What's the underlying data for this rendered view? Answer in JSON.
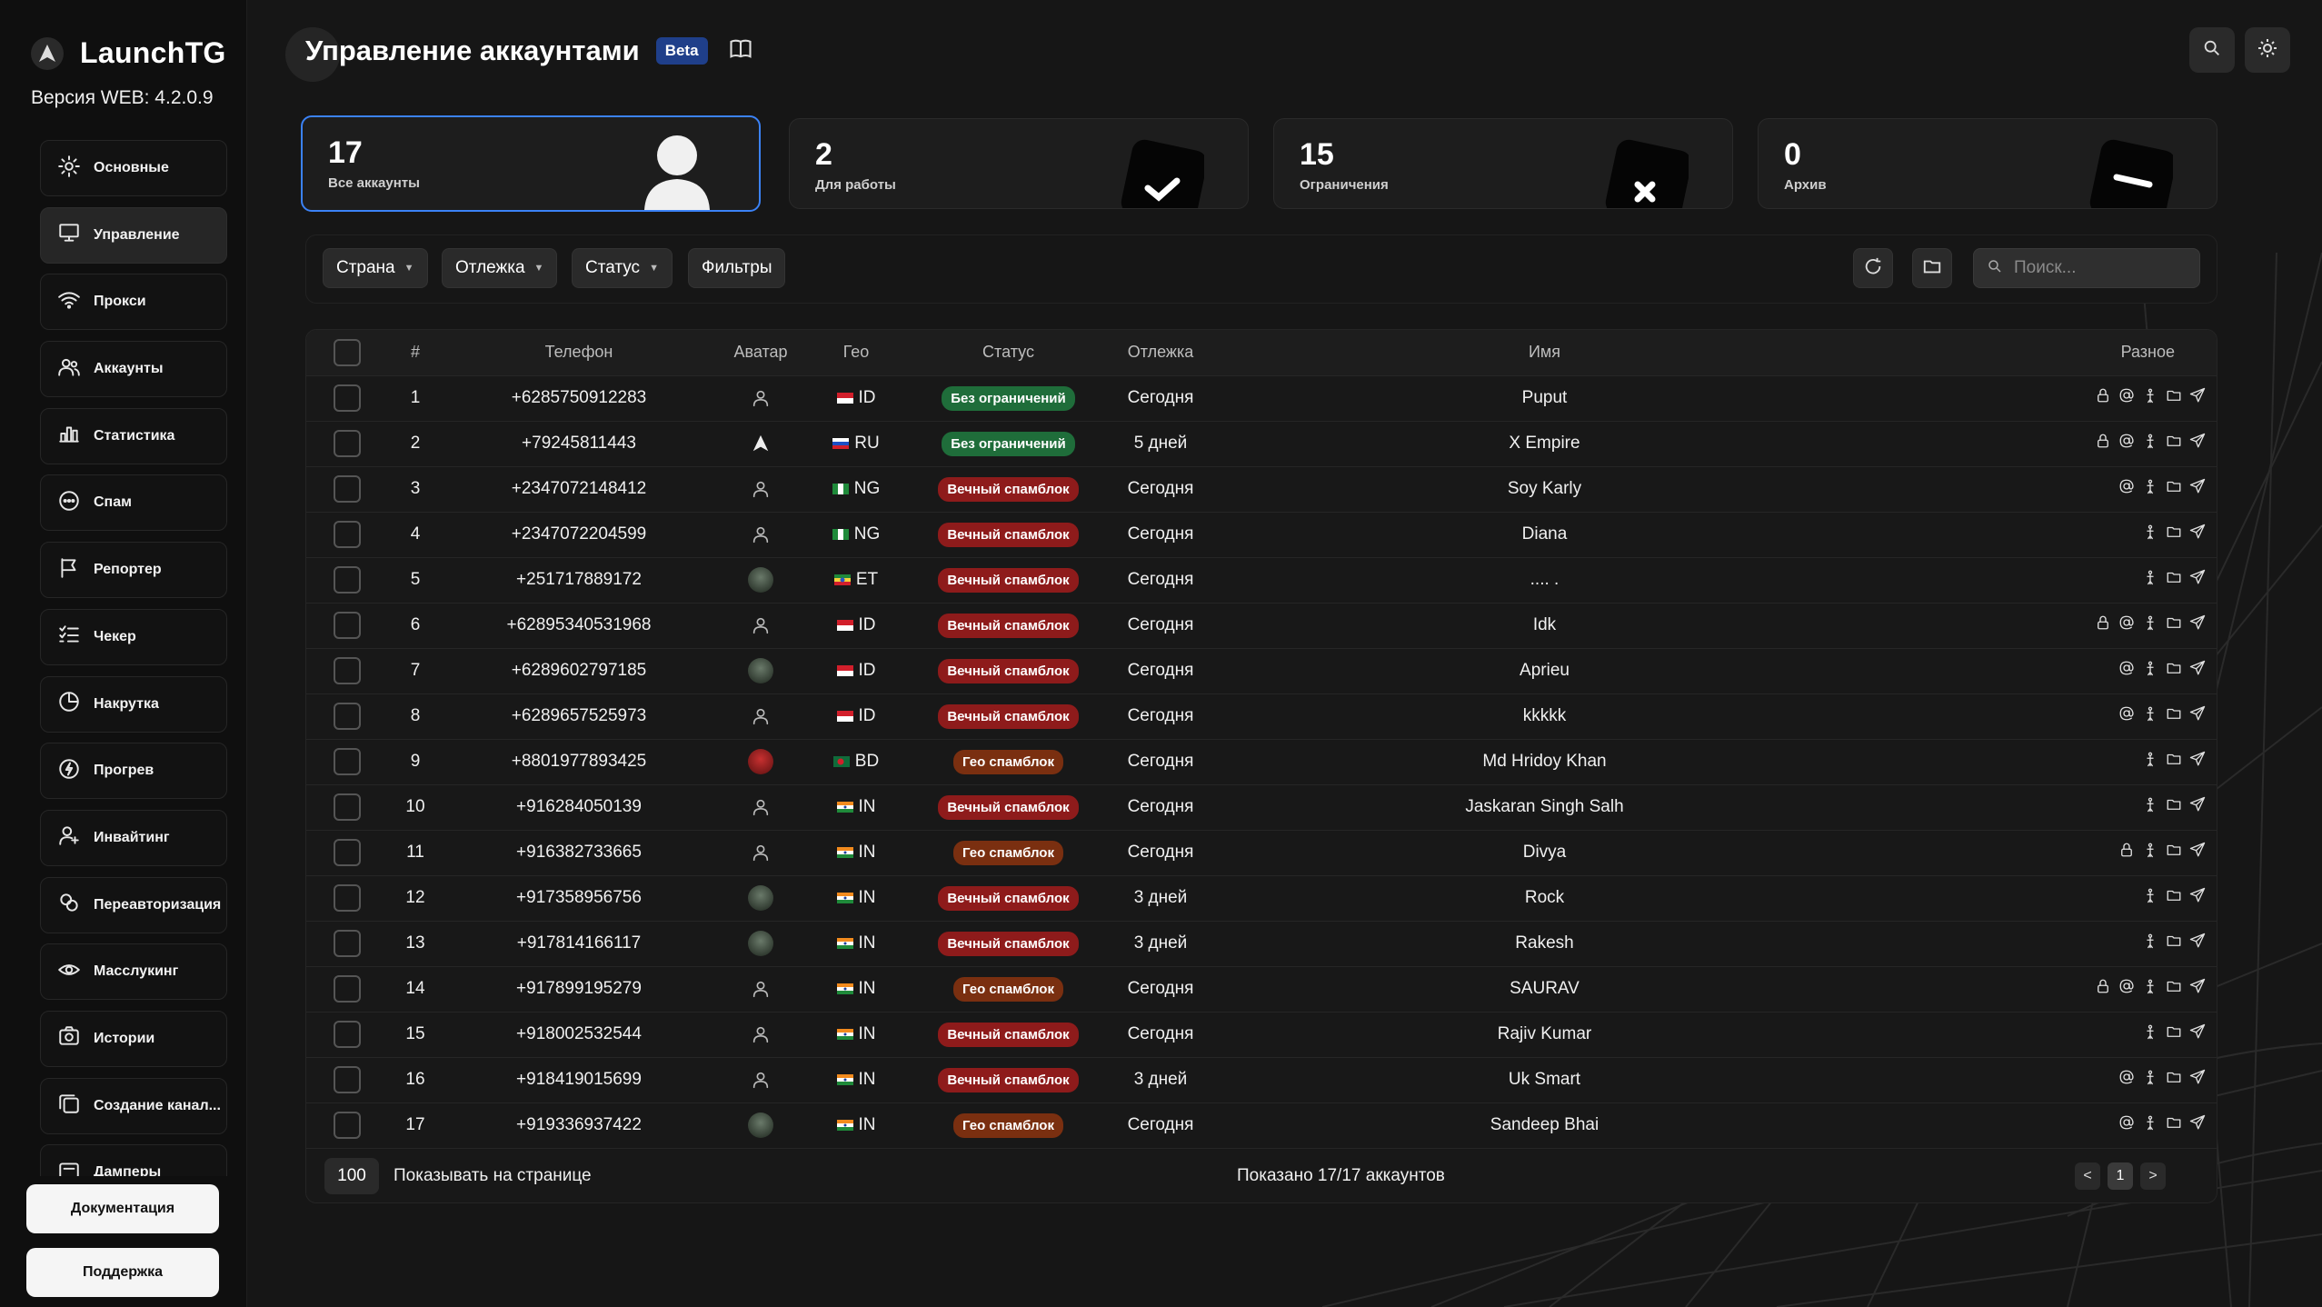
{
  "brand": {
    "name": "LaunchTG",
    "version": "Версия WEB: 4.2.0.9"
  },
  "nav": [
    {
      "label": "Основные",
      "icon": "gear-icon"
    },
    {
      "label": "Управление",
      "icon": "monitor-icon",
      "active": true
    },
    {
      "label": "Прокси",
      "icon": "wifi-icon"
    },
    {
      "label": "Аккаунты",
      "icon": "users-icon"
    },
    {
      "label": "Статистика",
      "icon": "bar-chart-icon"
    },
    {
      "label": "Спам",
      "icon": "chat-icon"
    },
    {
      "label": "Репортер",
      "icon": "flag-icon"
    },
    {
      "label": "Чекер",
      "icon": "checklist-icon"
    },
    {
      "label": "Накрутка",
      "icon": "pie-icon"
    },
    {
      "label": "Прогрев",
      "icon": "bolt-icon"
    },
    {
      "label": "Инвайтинг",
      "icon": "add-user-icon"
    },
    {
      "label": "Переавторизация",
      "icon": "cycle-icon"
    },
    {
      "label": "Масслукинг",
      "icon": "eye-icon"
    },
    {
      "label": "Истории",
      "icon": "camera-icon"
    },
    {
      "label": "Создание канал...",
      "icon": "copy-icon"
    },
    {
      "label": "Дамперы",
      "icon": "dump-icon"
    }
  ],
  "sidebar_buttons": {
    "docs": "Документация",
    "support": "Поддержка"
  },
  "header": {
    "title": "Управление аккаунтами",
    "badge": "Beta"
  },
  "stats": [
    {
      "value": "17",
      "label": "Все аккаунты",
      "icon": "user-icon"
    },
    {
      "value": "2",
      "label": "Для работы",
      "icon": "check-icon"
    },
    {
      "value": "15",
      "label": "Ограничения",
      "icon": "x-icon"
    },
    {
      "value": "0",
      "label": "Архив",
      "icon": "minus-icon"
    }
  ],
  "filters": {
    "country": "Страна",
    "spam_age": "Отлежка",
    "status": "Статус",
    "filters": "Фильтры",
    "search_placeholder": "Поиск..."
  },
  "table": {
    "headers": {
      "num": "#",
      "phone": "Телефон",
      "avatar": "Аватар",
      "geo": "Гео",
      "status": "Статус",
      "age": "Отлежка",
      "name": "Имя",
      "misc": "Разное"
    },
    "rows": [
      {
        "n": "1",
        "phone": "+6285750912283",
        "avatar": "none",
        "geo": "ID",
        "status": "Без ограничений",
        "type": "green",
        "age": "Сегодня",
        "name": "Puput",
        "icons": [
          "lock",
          "at",
          "key",
          "folder",
          "send"
        ]
      },
      {
        "n": "2",
        "phone": "+79245811443",
        "avatar": "logo",
        "geo": "RU",
        "status": "Без ограничений",
        "type": "green",
        "age": "5 дней",
        "name": "X Empire",
        "icons": [
          "lock",
          "at",
          "key",
          "folder",
          "send"
        ]
      },
      {
        "n": "3",
        "phone": "+2347072148412",
        "avatar": "none",
        "geo": "NG",
        "status": "Вечный спамблок",
        "type": "red",
        "age": "Сегодня",
        "name": "Soy Karly",
        "icons": [
          "at",
          "key",
          "folder",
          "send"
        ]
      },
      {
        "n": "4",
        "phone": "+2347072204599",
        "avatar": "none",
        "geo": "NG",
        "status": "Вечный спамблок",
        "type": "red",
        "age": "Сегодня",
        "name": "Diana",
        "icons": [
          "key",
          "folder",
          "send"
        ]
      },
      {
        "n": "5",
        "phone": "+251717889172",
        "avatar": "photo",
        "geo": "ET",
        "status": "Вечный спамблок",
        "type": "red",
        "age": "Сегодня",
        "name": ".... .",
        "icons": [
          "key",
          "folder",
          "send"
        ]
      },
      {
        "n": "6",
        "phone": "+62895340531968",
        "avatar": "none",
        "geo": "ID",
        "status": "Вечный спамблок",
        "type": "red",
        "age": "Сегодня",
        "name": "Idk",
        "icons": [
          "lock",
          "at",
          "key",
          "folder",
          "send"
        ]
      },
      {
        "n": "7",
        "phone": "+6289602797185",
        "avatar": "photo",
        "geo": "ID",
        "status": "Вечный спамблок",
        "type": "red",
        "age": "Сегодня",
        "name": "Aprieu",
        "icons": [
          "at",
          "key",
          "folder",
          "send"
        ]
      },
      {
        "n": "8",
        "phone": "+6289657525973",
        "avatar": "none",
        "geo": "ID",
        "status": "Вечный спамблок",
        "type": "red",
        "age": "Сегодня",
        "name": "kkkkk",
        "icons": [
          "at",
          "key",
          "folder",
          "send"
        ]
      },
      {
        "n": "9",
        "phone": "+8801977893425",
        "avatar": "photo-red",
        "geo": "BD",
        "status": "Гео спамблок",
        "type": "orange",
        "age": "Сегодня",
        "name": "Md Hridoy Khan",
        "icons": [
          "key",
          "folder",
          "send"
        ]
      },
      {
        "n": "10",
        "phone": "+916284050139",
        "avatar": "none",
        "geo": "IN",
        "status": "Вечный спамблок",
        "type": "red",
        "age": "Сегодня",
        "name": "Jaskaran Singh Salh",
        "icons": [
          "key",
          "folder",
          "send"
        ]
      },
      {
        "n": "11",
        "phone": "+916382733665",
        "avatar": "none",
        "geo": "IN",
        "status": "Гео спамблок",
        "type": "orange",
        "age": "Сегодня",
        "name": "Divya",
        "icons": [
          "lock",
          "key",
          "folder",
          "send"
        ]
      },
      {
        "n": "12",
        "phone": "+917358956756",
        "avatar": "photo",
        "geo": "IN",
        "status": "Вечный спамблок",
        "type": "red",
        "age": "3 дней",
        "name": "Rock",
        "icons": [
          "key",
          "folder",
          "send"
        ]
      },
      {
        "n": "13",
        "phone": "+917814166117",
        "avatar": "photo",
        "geo": "IN",
        "status": "Вечный спамблок",
        "type": "red",
        "age": "3 дней",
        "name": "Rakesh",
        "icons": [
          "key",
          "folder",
          "send"
        ]
      },
      {
        "n": "14",
        "phone": "+917899195279",
        "avatar": "none",
        "geo": "IN",
        "status": "Гео спамблок",
        "type": "orange",
        "age": "Сегодня",
        "name": "SAURAV",
        "icons": [
          "lock",
          "at",
          "key",
          "folder",
          "send"
        ]
      },
      {
        "n": "15",
        "phone": "+918002532544",
        "avatar": "none",
        "geo": "IN",
        "status": "Вечный спамблок",
        "type": "red",
        "age": "Сегодня",
        "name": "Rajiv Kumar",
        "icons": [
          "key",
          "folder",
          "send"
        ]
      },
      {
        "n": "16",
        "phone": "+918419015699",
        "avatar": "none",
        "geo": "IN",
        "status": "Вечный спамблок",
        "type": "red",
        "age": "3 дней",
        "name": "Uk Smart",
        "icons": [
          "at",
          "key",
          "folder",
          "send"
        ]
      },
      {
        "n": "17",
        "phone": "+919336937422",
        "avatar": "photo",
        "geo": "IN",
        "status": "Гео спамблок",
        "type": "orange",
        "age": "Сегодня",
        "name": "Sandeep Bhai",
        "icons": [
          "at",
          "key",
          "folder",
          "send"
        ]
      }
    ]
  },
  "footer": {
    "per_page": "100",
    "per_page_label": "Показывать на странице",
    "shown": "Показано 17/17 аккаунтов",
    "prev": "<",
    "page": "1",
    "next": ">"
  },
  "colors": {
    "accent": "#3b82f6",
    "beta": "#1f3f8a",
    "green": "#1f6d3a",
    "red": "#8e1b1b",
    "orange": "#7a2f10"
  }
}
